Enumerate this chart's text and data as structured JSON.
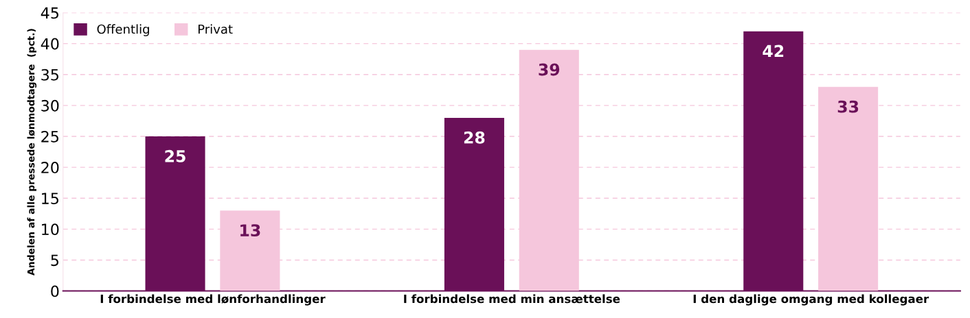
{
  "chart_data": {
    "type": "bar",
    "ylabel": "Andelen af alle pressede lønmodtagere  (pct.)",
    "categories": [
      "I forbindelse med lønforhandlinger",
      "I forbindelse med min ansættelse",
      "I den daglige omgang med kollegaer"
    ],
    "series": [
      {
        "name": "Offentlig",
        "color": "#6a1058",
        "values": [
          25,
          28,
          42
        ]
      },
      {
        "name": "Privat",
        "color": "#f5c6dc",
        "values": [
          13,
          39,
          33
        ]
      }
    ],
    "ylim": [
      0,
      45
    ],
    "yticks": [
      0,
      5,
      10,
      15,
      20,
      25,
      30,
      35,
      40,
      45
    ],
    "grid": "y",
    "legend": "top left",
    "data_labels": true
  }
}
